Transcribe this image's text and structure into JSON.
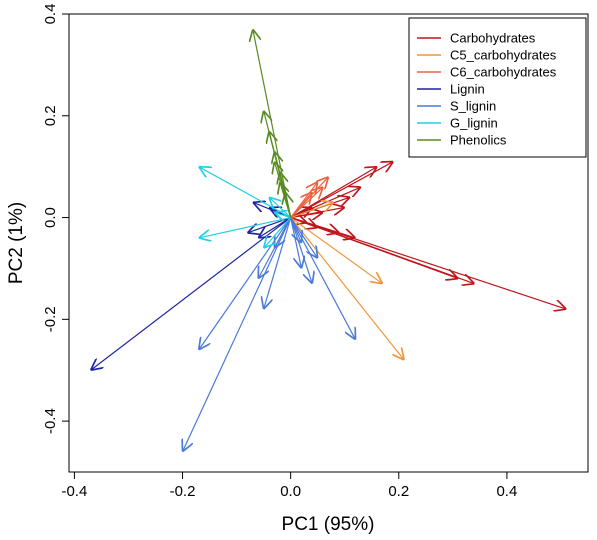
{
  "chart_data": {
    "type": "biplot",
    "title": "",
    "xlabel": "PC1 (95%)",
    "ylabel": "PC2 (1%)",
    "xlim": [
      -0.41,
      0.55
    ],
    "ylim": [
      -0.5,
      0.4
    ],
    "xticks": [
      -0.4,
      -0.2,
      0.0,
      0.2,
      0.4
    ],
    "yticks": [
      -0.4,
      -0.2,
      0.0,
      0.2,
      0.4
    ],
    "xtick_labels": [
      "-0.4",
      "-0.2",
      "0.0",
      "0.2",
      "0.4"
    ],
    "ytick_labels": [
      "-0.4",
      "-0.2",
      "0.0",
      "0.2",
      "0.4"
    ],
    "grid": false,
    "legend_position": "top-right",
    "series": [
      {
        "name": "Carbohydrates",
        "color": "#c0151b",
        "vectors": [
          [
            0.51,
            -0.18
          ],
          [
            0.34,
            -0.13
          ],
          [
            0.31,
            -0.12
          ],
          [
            0.19,
            0.11
          ],
          [
            0.16,
            0.1
          ],
          [
            0.13,
            0.06
          ],
          [
            0.11,
            0.04
          ],
          [
            0.1,
            0.02
          ],
          [
            0.12,
            -0.04
          ],
          [
            0.09,
            -0.03
          ],
          [
            0.06,
            0.01
          ],
          [
            0.05,
            -0.02
          ],
          [
            0.04,
            0.02
          ],
          [
            0.03,
            -0.01
          ]
        ]
      },
      {
        "name": "C5_carbohydrates",
        "color": "#f0963a",
        "vectors": [
          [
            0.21,
            -0.28
          ],
          [
            0.17,
            -0.13
          ],
          [
            0.08,
            0.03
          ]
        ]
      },
      {
        "name": "C6_carbohydrates",
        "color": "#ec6240",
        "vectors": [
          [
            0.07,
            0.08
          ],
          [
            0.05,
            0.07
          ],
          [
            0.04,
            0.05
          ],
          [
            0.06,
            0.06
          ]
        ]
      },
      {
        "name": "Lignin",
        "color": "#1d24a0",
        "vectors": [
          [
            -0.37,
            -0.3
          ],
          [
            -0.07,
            0.03
          ],
          [
            -0.08,
            -0.03
          ],
          [
            -0.06,
            -0.04
          ],
          [
            -0.04,
            0.02
          ]
        ]
      },
      {
        "name": "S_lignin",
        "color": "#4a79d8",
        "vectors": [
          [
            -0.2,
            -0.46
          ],
          [
            -0.17,
            -0.26
          ],
          [
            -0.05,
            -0.18
          ],
          [
            -0.06,
            -0.12
          ],
          [
            0.12,
            -0.24
          ],
          [
            0.04,
            -0.13
          ],
          [
            0.02,
            -0.1
          ],
          [
            0.05,
            -0.08
          ],
          [
            -0.03,
            -0.06
          ],
          [
            0.02,
            -0.05
          ]
        ]
      },
      {
        "name": "G_lignin",
        "color": "#22cfe6",
        "vectors": [
          [
            -0.17,
            0.1
          ],
          [
            -0.17,
            -0.04
          ],
          [
            -0.04,
            0.04
          ],
          [
            -0.05,
            -0.06
          ],
          [
            -0.03,
            0.01
          ]
        ]
      },
      {
        "name": "Phenolics",
        "color": "#5a8a22",
        "vectors": [
          [
            -0.07,
            0.37
          ],
          [
            -0.05,
            0.21
          ],
          [
            -0.04,
            0.17
          ],
          [
            -0.03,
            0.13
          ],
          [
            -0.03,
            0.11
          ],
          [
            -0.02,
            0.09
          ],
          [
            -0.02,
            0.07
          ],
          [
            -0.01,
            0.05
          ]
        ]
      }
    ]
  }
}
